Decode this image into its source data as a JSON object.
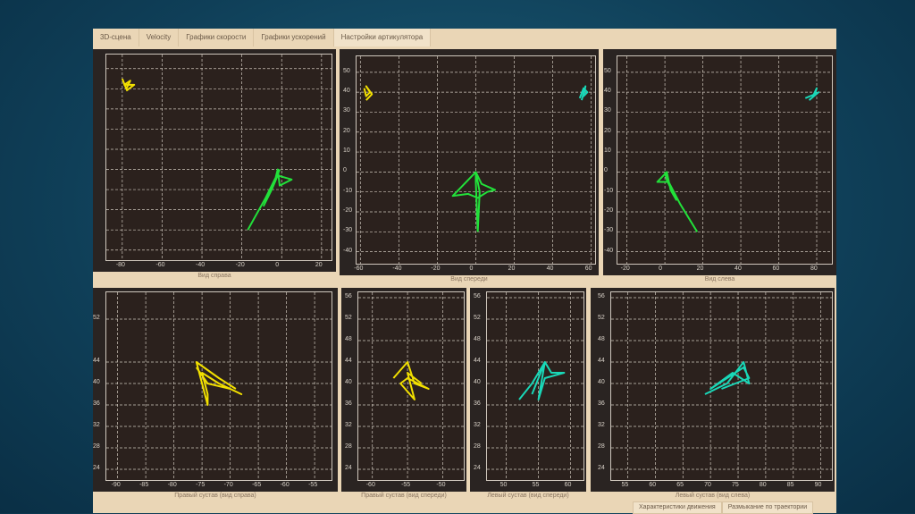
{
  "tabs": [
    {
      "label": "3D-сцена"
    },
    {
      "label": "Velocity"
    },
    {
      "label": "Графики скорости"
    },
    {
      "label": "Графики ускорений"
    },
    {
      "label": "Настройки артикулятора"
    }
  ],
  "bottom_tabs": [
    {
      "label": "Характеристики движения"
    },
    {
      "label": "Размыкание по траектории"
    }
  ],
  "colors": {
    "green": "#22e03a",
    "yellow": "#f2e000",
    "cyan": "#19d8b8",
    "grid": "#cfc7bd"
  },
  "plots": [
    {
      "caption": "Вид справа",
      "xlim": [
        -88,
        25
      ],
      "ylim": [
        -45,
        57
      ],
      "xticks": [
        -80,
        -60,
        -40,
        -20,
        0,
        20
      ],
      "yticks": [],
      "traces": [
        {
          "color": "yellow",
          "points": [
            [
              -80,
              45
            ],
            [
              -78,
              40
            ],
            [
              -76,
              44
            ],
            [
              -79,
              42
            ],
            [
              -74,
              42
            ],
            [
              -78,
              39
            ]
          ]
        },
        {
          "color": "green",
          "points": [
            [
              -17,
              -30
            ],
            [
              -8,
              -14
            ],
            [
              -3,
              -4
            ],
            [
              -2,
              0
            ],
            [
              -1,
              -8
            ],
            [
              5,
              -5
            ],
            [
              -2,
              -3
            ],
            [
              -5,
              -10
            ],
            [
              -9,
              -18
            ],
            [
              -3,
              -5
            ],
            [
              -1,
              0
            ]
          ]
        }
      ]
    },
    {
      "caption": "Вид спереди",
      "xlim": [
        -62,
        62
      ],
      "ylim": [
        -46,
        58
      ],
      "xticks": [
        -60,
        -40,
        -20,
        0,
        20,
        40,
        60
      ],
      "yticks": [
        50,
        40,
        30,
        20,
        10,
        0,
        -10,
        -20,
        -30,
        -40
      ],
      "traces": [
        {
          "color": "yellow",
          "points": [
            [
              -58,
              42
            ],
            [
              -57,
              38
            ],
            [
              -55,
              40
            ],
            [
              -57,
              43
            ],
            [
              -54,
              39
            ],
            [
              -57,
              36
            ]
          ]
        },
        {
          "color": "cyan",
          "points": [
            [
              54,
              37
            ],
            [
              56,
              42
            ],
            [
              58,
              40
            ],
            [
              56,
              38
            ],
            [
              57,
              43
            ],
            [
              55,
              36
            ]
          ]
        },
        {
          "color": "green",
          "points": [
            [
              1,
              -30
            ],
            [
              0,
              -5
            ],
            [
              0,
              0
            ],
            [
              -12,
              -12
            ],
            [
              -4,
              -11
            ],
            [
              1,
              -13
            ],
            [
              6,
              -10
            ],
            [
              10,
              -9
            ],
            [
              3,
              -6
            ],
            [
              0,
              0
            ],
            [
              2,
              -10
            ],
            [
              1,
              -30
            ]
          ]
        }
      ]
    },
    {
      "caption": "Вид слева",
      "xlim": [
        -25,
        88
      ],
      "ylim": [
        -46,
        58
      ],
      "xticks": [
        -20,
        0,
        20,
        40,
        60,
        80
      ],
      "yticks": [
        50,
        40,
        30,
        20,
        10,
        0,
        -10,
        -20,
        -30,
        -40
      ],
      "traces": [
        {
          "color": "cyan",
          "points": [
            [
              74,
              37
            ],
            [
              79,
              39
            ],
            [
              80,
              42
            ],
            [
              78,
              38
            ],
            [
              81,
              40
            ],
            [
              76,
              36
            ]
          ]
        },
        {
          "color": "green",
          "points": [
            [
              17,
              -30
            ],
            [
              8,
              -16
            ],
            [
              2,
              -5
            ],
            [
              -4,
              -5
            ],
            [
              1,
              0
            ],
            [
              3,
              -9
            ],
            [
              6,
              -14
            ],
            [
              1,
              -4
            ],
            [
              0,
              0
            ]
          ]
        }
      ]
    },
    {
      "caption": "Правый сустав (вид справа)",
      "xlim": [
        -92,
        -52
      ],
      "ylim": [
        22,
        57
      ],
      "xticks": [
        -90,
        -85,
        -80,
        -75,
        -70,
        -65,
        -60,
        -55
      ],
      "yticks": [
        52,
        44,
        40,
        36,
        32,
        28,
        24
      ],
      "traces": [
        {
          "color": "yellow",
          "points": [
            [
              -76,
              43
            ],
            [
              -74,
              40
            ],
            [
              -70,
              39
            ],
            [
              -68,
              38
            ],
            [
              -72,
              40
            ],
            [
              -75,
              42
            ],
            [
              -74,
              38
            ],
            [
              -74,
              36
            ],
            [
              -75,
              40
            ],
            [
              -76,
              44
            ],
            [
              -72,
              41
            ],
            [
              -69,
              39
            ]
          ]
        }
      ]
    },
    {
      "caption": "Правый сустав (вид спереди)",
      "xlim": [
        -62,
        -47
      ],
      "ylim": [
        22,
        57
      ],
      "xticks": [
        -60,
        -55,
        -50
      ],
      "yticks": [
        56,
        52,
        48,
        44,
        40,
        36,
        32,
        28,
        24
      ],
      "traces": [
        {
          "color": "yellow",
          "points": [
            [
              -57,
              41
            ],
            [
              -55,
              44
            ],
            [
              -54,
              40
            ],
            [
              -52,
              39
            ],
            [
              -55,
              41
            ],
            [
              -56,
              40
            ],
            [
              -54,
              37
            ],
            [
              -55,
              42
            ],
            [
              -53,
              40
            ]
          ]
        }
      ]
    },
    {
      "caption": "Левый сустав (вид спереди)",
      "xlim": [
        47,
        62
      ],
      "ylim": [
        22,
        57
      ],
      "xticks": [
        50,
        55,
        60
      ],
      "yticks": [
        56,
        52,
        48,
        44,
        40,
        36,
        32,
        28,
        24
      ],
      "traces": [
        {
          "color": "cyan",
          "points": [
            [
              52,
              37
            ],
            [
              54,
              40
            ],
            [
              56,
              44
            ],
            [
              57,
              42
            ],
            [
              59,
              42
            ],
            [
              56,
              41
            ],
            [
              55,
              37
            ],
            [
              56,
              44
            ],
            [
              54,
              38
            ]
          ]
        }
      ]
    },
    {
      "caption": "Левый сустав (вид слева)",
      "xlim": [
        52,
        92
      ],
      "ylim": [
        22,
        57
      ],
      "xticks": [
        55,
        60,
        65,
        70,
        75,
        80,
        85,
        90
      ],
      "yticks": [
        56,
        52,
        48,
        44,
        40,
        36,
        32,
        28,
        24
      ],
      "traces": [
        {
          "color": "cyan",
          "points": [
            [
              69,
              38
            ],
            [
              73,
              40
            ],
            [
              76,
              44
            ],
            [
              77,
              40
            ],
            [
              74,
              42
            ],
            [
              70,
              39
            ],
            [
              76,
              43
            ],
            [
              77,
              41
            ],
            [
              72,
              39
            ]
          ]
        }
      ]
    }
  ]
}
